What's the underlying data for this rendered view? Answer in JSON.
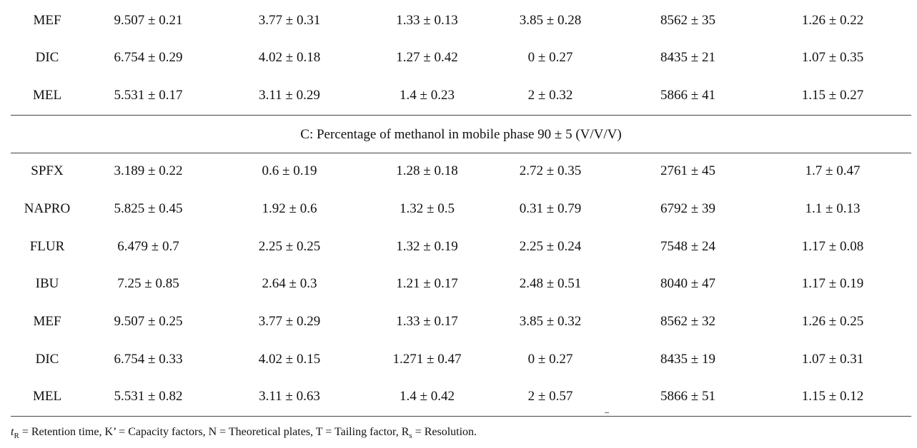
{
  "top_rows": [
    [
      "MEF",
      "9.507 ± 0.21",
      "3.77 ± 0.31",
      "1.33 ± 0.13",
      "3.85 ± 0.28",
      "8562 ± 35",
      "1.26 ± 0.22"
    ],
    [
      "DIC",
      "6.754 ± 0.29",
      "4.02 ± 0.18",
      "1.27 ± 0.42",
      "0 ± 0.27",
      "8435 ± 21",
      "1.07 ± 0.35"
    ],
    [
      "MEL",
      "5.531 ± 0.17",
      "3.11 ± 0.29",
      "1.4 ± 0.23",
      "2 ± 0.32",
      "5866 ± 41",
      "1.15 ± 0.27"
    ]
  ],
  "section_c": {
    "label": "C: Percentage of methanol in mobile phase 90 ± 5 (V/V/V)",
    "rows": [
      [
        "SPFX",
        "3.189 ± 0.22",
        "0.6 ± 0.19",
        "1.28 ± 0.18",
        "2.72 ± 0.35",
        "2761 ± 45",
        "1.7 ± 0.47"
      ],
      [
        "NAPRO",
        "5.825 ± 0.45",
        "1.92 ± 0.6",
        "1.32 ± 0.5",
        "0.31 ± 0.79",
        "6792 ± 39",
        "1.1 ± 0.13"
      ],
      [
        "FLUR",
        "6.479 ± 0.7",
        "2.25 ± 0.25",
        "1.32 ± 0.19",
        "2.25 ± 0.24",
        "7548 ± 24",
        "1.17 ± 0.08"
      ],
      [
        "IBU",
        "7.25 ± 0.85",
        "2.64 ± 0.3",
        "1.21 ± 0.17",
        "2.48 ± 0.51",
        "8040 ± 47",
        "1.17 ± 0.19"
      ],
      [
        "MEF",
        "9.507 ± 0.25",
        "3.77 ± 0.29",
        "1.33 ± 0.17",
        "3.85 ± 0.32",
        "8562 ± 32",
        "1.26 ± 0.25"
      ],
      [
        "DIC",
        "6.754 ± 0.33",
        "4.02 ± 0.15",
        "1.271 ± 0.47",
        "0 ± 0.27",
        "8435 ± 19",
        "1.07 ± 0.31"
      ],
      [
        "MEL",
        "5.531 ± 0.82",
        "3.11 ± 0.63",
        "1.4 ± 0.42",
        "2 ± 0.57",
        "5866 ± 51",
        "1.15 ± 0.12"
      ]
    ]
  },
  "footnote": {
    "tr_symbol": "t",
    "tr_sub": "R",
    "tr_text": " = Retention time, K’ = Capacity factors, N = Theoretical plates, T = Tailing factor, R",
    "rs_sub": "s",
    "rs_text": " = Resolution."
  }
}
